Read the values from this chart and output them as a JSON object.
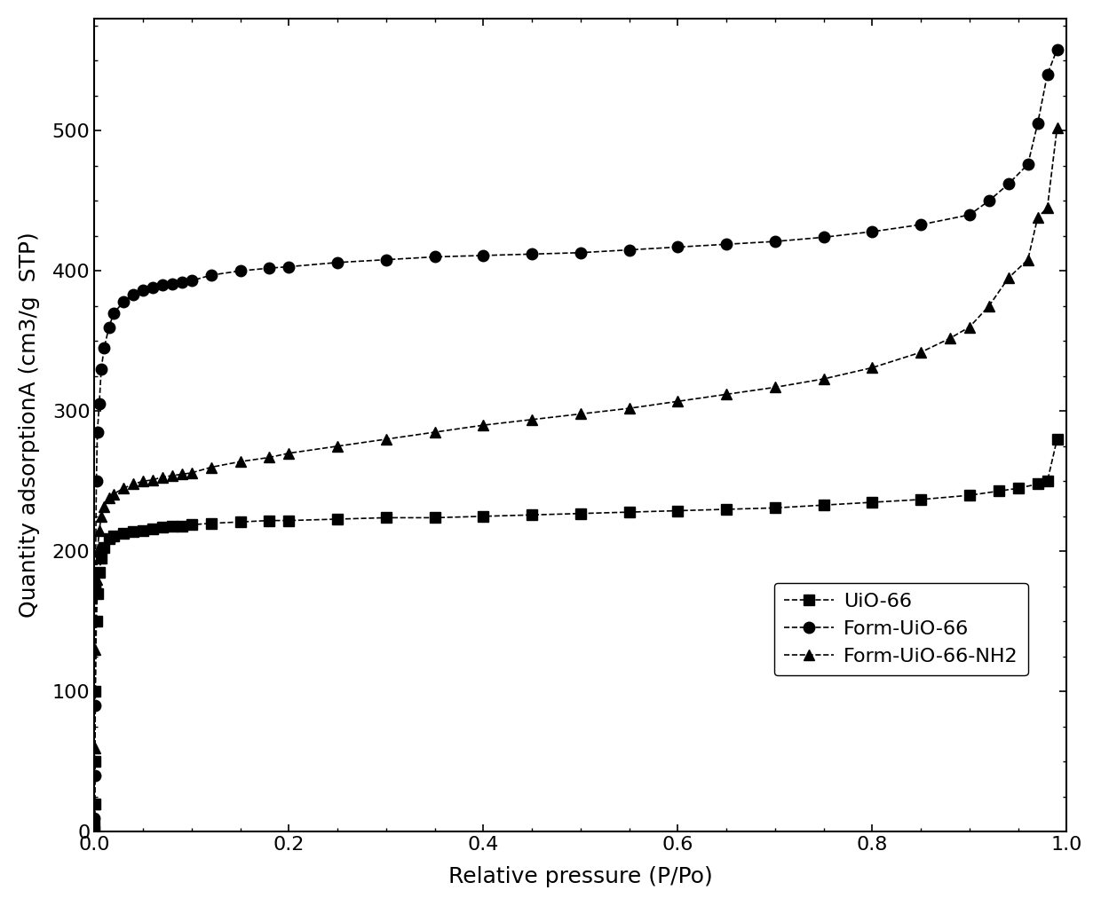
{
  "title": "",
  "xlabel": "Relative pressure (P/Po)",
  "ylabel": "Quantity adsorptionA (cm3/g  STP)",
  "xlim": [
    0,
    1.0
  ],
  "ylim": [
    0,
    580
  ],
  "yticks": [
    0,
    100,
    200,
    300,
    400,
    500
  ],
  "xticks": [
    0.0,
    0.2,
    0.4,
    0.6,
    0.8,
    1.0
  ],
  "legend_labels": [
    "UiO-66",
    "Form-UiO-66",
    "Form-UiO-66-NH2"
  ],
  "background_color": "#ffffff",
  "line_color": "#000000",
  "uio66_x": [
    1e-05,
    0.0001,
    0.0003,
    0.0005,
    0.001,
    0.002,
    0.003,
    0.005,
    0.007,
    0.01,
    0.015,
    0.02,
    0.03,
    0.04,
    0.05,
    0.06,
    0.07,
    0.08,
    0.09,
    0.1,
    0.12,
    0.15,
    0.18,
    0.2,
    0.25,
    0.3,
    0.35,
    0.4,
    0.45,
    0.5,
    0.55,
    0.6,
    0.65,
    0.7,
    0.75,
    0.8,
    0.85,
    0.9,
    0.93,
    0.95,
    0.97,
    0.98,
    0.99
  ],
  "uio66_y": [
    0,
    5,
    20,
    50,
    100,
    150,
    170,
    185,
    195,
    203,
    209,
    211,
    213,
    214,
    215,
    216,
    217,
    218,
    218,
    219,
    220,
    221,
    222,
    222,
    223,
    224,
    224,
    225,
    226,
    227,
    228,
    229,
    230,
    231,
    233,
    235,
    237,
    240,
    243,
    245,
    248,
    250,
    280
  ],
  "form_uio66_x": [
    1e-05,
    0.0001,
    0.0003,
    0.0005,
    0.001,
    0.002,
    0.003,
    0.005,
    0.007,
    0.01,
    0.015,
    0.02,
    0.03,
    0.04,
    0.05,
    0.06,
    0.07,
    0.08,
    0.09,
    0.1,
    0.12,
    0.15,
    0.18,
    0.2,
    0.25,
    0.3,
    0.35,
    0.4,
    0.45,
    0.5,
    0.55,
    0.6,
    0.65,
    0.7,
    0.75,
    0.8,
    0.85,
    0.9,
    0.92,
    0.94,
    0.96,
    0.97,
    0.98,
    0.99
  ],
  "form_uio66_y": [
    0,
    10,
    40,
    90,
    175,
    250,
    285,
    305,
    330,
    345,
    360,
    370,
    378,
    383,
    386,
    388,
    390,
    391,
    392,
    393,
    397,
    400,
    402,
    403,
    406,
    408,
    410,
    411,
    412,
    413,
    415,
    417,
    419,
    421,
    424,
    428,
    433,
    440,
    450,
    462,
    476,
    505,
    540,
    558
  ],
  "form_uio66_nh2_x": [
    1e-05,
    0.0001,
    0.0003,
    0.0005,
    0.001,
    0.002,
    0.003,
    0.005,
    0.007,
    0.01,
    0.015,
    0.02,
    0.03,
    0.04,
    0.05,
    0.06,
    0.07,
    0.08,
    0.09,
    0.1,
    0.12,
    0.15,
    0.18,
    0.2,
    0.25,
    0.3,
    0.35,
    0.4,
    0.45,
    0.5,
    0.55,
    0.6,
    0.65,
    0.7,
    0.75,
    0.8,
    0.85,
    0.88,
    0.9,
    0.92,
    0.94,
    0.96,
    0.97,
    0.98,
    0.99
  ],
  "form_uio66_nh2_y": [
    0,
    5,
    20,
    60,
    130,
    180,
    200,
    215,
    225,
    232,
    238,
    241,
    245,
    248,
    250,
    251,
    253,
    254,
    255,
    256,
    260,
    264,
    267,
    270,
    275,
    280,
    285,
    290,
    294,
    298,
    302,
    307,
    312,
    317,
    323,
    331,
    342,
    352,
    360,
    375,
    395,
    408,
    438,
    445,
    502
  ]
}
